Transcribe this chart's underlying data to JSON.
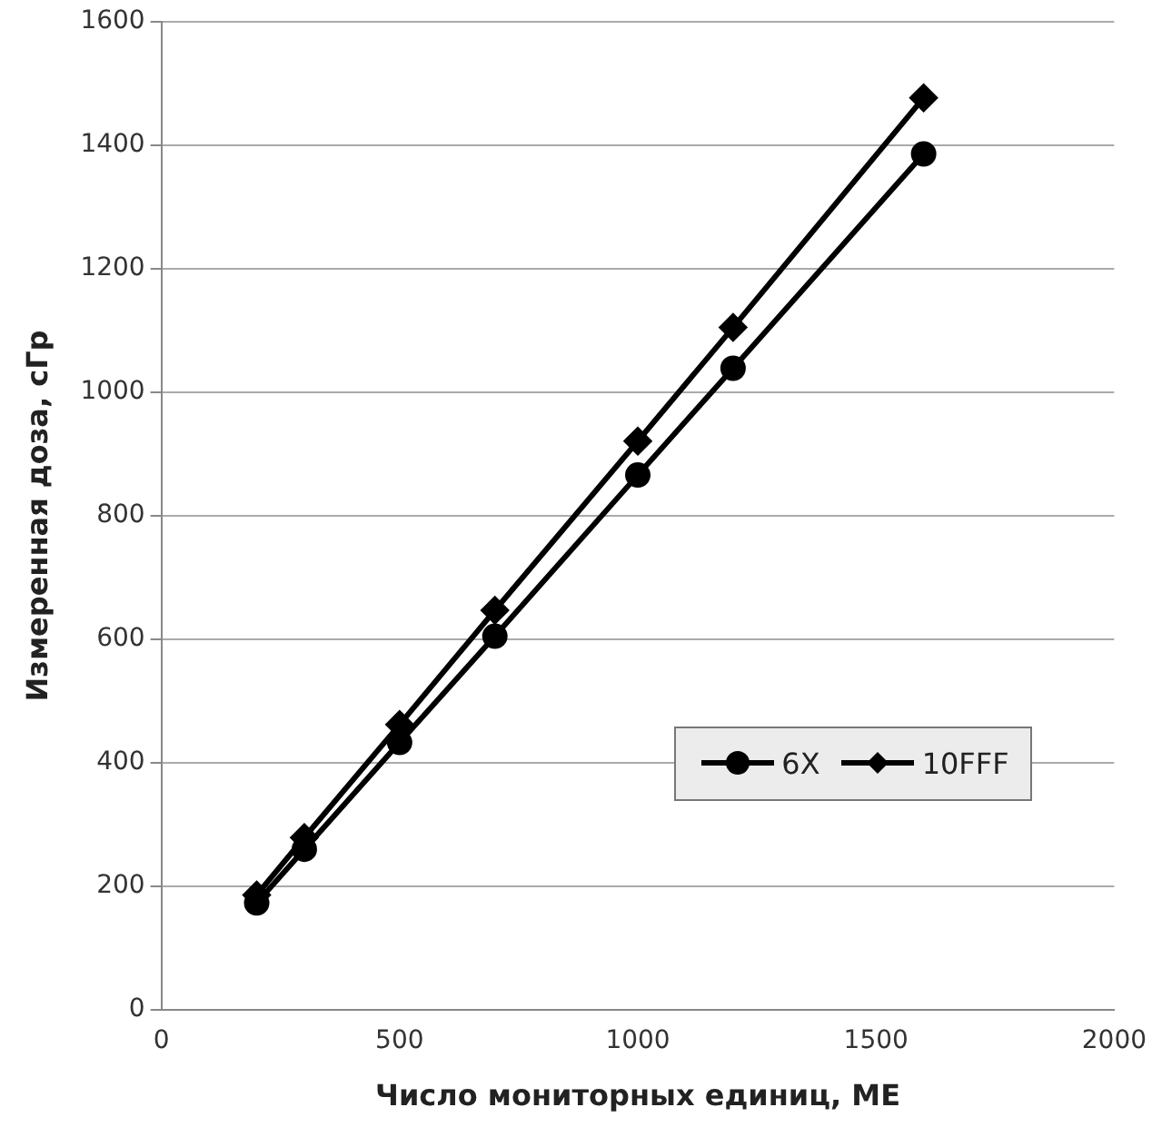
{
  "chart_data": {
    "type": "line",
    "xlabel": "Число мониторных единиц, МЕ",
    "ylabel": "Измеренная доза, сГр",
    "x": [
      200,
      300,
      500,
      700,
      1000,
      1200,
      1600
    ],
    "series": [
      {
        "name": "6X",
        "color": "#000000",
        "marker": "circle",
        "values": [
          173,
          260,
          433,
          605,
          866,
          1039,
          1386
        ]
      },
      {
        "name": "10FFF",
        "color": "#000000",
        "marker": "diamond",
        "values": [
          186,
          279,
          462,
          647,
          921,
          1105,
          1477
        ]
      }
    ],
    "xlim": [
      0,
      2000
    ],
    "xticks": [
      0,
      500,
      1000,
      1500,
      2000
    ],
    "ylim": [
      0,
      1600
    ],
    "yticks": [
      0,
      200,
      400,
      600,
      800,
      1000,
      1200,
      1400,
      1600
    ],
    "grid": "y",
    "legend": "right",
    "line_style": "solid"
  }
}
